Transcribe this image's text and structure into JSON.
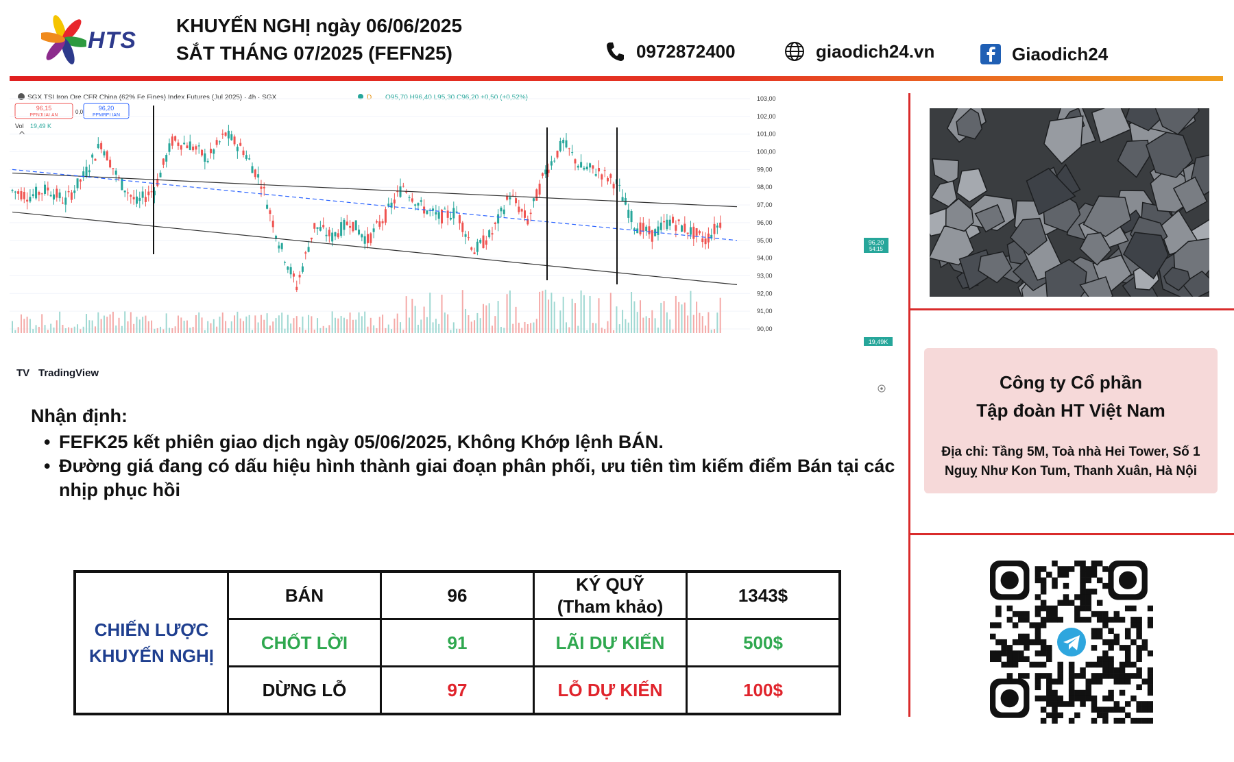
{
  "header": {
    "logo_text": "HTS",
    "title_line1": "KHUYẾN NGHỊ ngày 06/06/2025",
    "title_line2": "SẮT THÁNG 07/2025 (FEFN25)",
    "phone": "0972872400",
    "website": "giaodich24.vn",
    "facebook": "Giaodich24"
  },
  "icons": {
    "phone": "phone-icon",
    "website": "globe-icon",
    "facebook": "facebook-icon",
    "telegram": "telegram-icon"
  },
  "colors": {
    "accent_red": "#d92b2b",
    "brand_blue": "#1f3f8f",
    "profit_green": "#2fa84f",
    "loss_red": "#e0242c",
    "candle_up": "#26a69a",
    "candle_down": "#ef5350"
  },
  "chart": {
    "symbol_title": "SGX TSI Iron Ore CFR China (62% Fe Fines) Index Futures (Jul 2025) · 4h · SGX",
    "ohlc_text": "O95,70 H96,40 L95,30 C96,20 +0,50 (+0,52%)",
    "interval_badge": "D",
    "sell_price": "96,15",
    "sell_label": "PENJUALAN",
    "spread": "0,05",
    "buy_price": "96,20",
    "buy_label": "PEMBELIAN",
    "vol_label": "Vol",
    "vol_value": "19,49 K",
    "price_tag": "96,20",
    "price_tag_time": "54:15",
    "volume_tag": "19,49K",
    "watermark": "TradingView"
  },
  "chart_data": {
    "type": "line",
    "title": "SGX TSI Iron Ore CFR China (62% Fe Fines) Index Futures (Jul 2025) · 4h · SGX",
    "ylim": [
      89.5,
      103.2
    ],
    "y_ticks": [
      "103,00",
      "102,00",
      "101,00",
      "100,00",
      "99,00",
      "98,00",
      "97,00",
      "96,00",
      "95,00",
      "94,00",
      "93,00",
      "92,00",
      "91,00",
      "90,00"
    ],
    "series": [
      {
        "name": "",
        "values": [
          97.8,
          97.5,
          97.9,
          97.2,
          98.6,
          100.5,
          98.4,
          97.1,
          97.9,
          100.6,
          100.4,
          99.6,
          101.0,
          100.1,
          98.3,
          94.9,
          92.4,
          95.8,
          95.2,
          96.1,
          95.0,
          96.4,
          98.1,
          96.9,
          96.3,
          96.6,
          94.4,
          95.4,
          97.6,
          96.1,
          98.9,
          100.5,
          99.1,
          98.9,
          98.2,
          95.9,
          95.3,
          96.1,
          95.6,
          95.0,
          96.2
        ]
      }
    ],
    "channel_upper": [
      [
        0,
        98.8
      ],
      [
        41,
        96.9
      ]
    ],
    "channel_lower": [
      [
        0,
        96.6
      ],
      [
        41,
        92.5
      ]
    ],
    "channel_mid": [
      [
        0,
        99.0
      ],
      [
        41,
        95.0
      ]
    ]
  },
  "company": {
    "name_line1": "Công ty Cổ phần",
    "name_line2": "Tập đoàn HT Việt Nam",
    "address_line1": "Địa chỉ: Tầng 5M, Toà nhà Hei Tower, Số 1",
    "address_line2": "Nguỵ Như Kon Tum, Thanh Xuân, Hà Nội"
  },
  "analysis": {
    "heading": "Nhận định:",
    "bullets": [
      "FEFK25 kết phiên giao dịch ngày 05/06/2025, Không Khớp lệnh BÁN.",
      "Đường giá đang có dấu hiệu hình thành giai đoạn phân phối, ưu tiên tìm kiếm điểm Bán tại các nhịp phục hồi"
    ]
  },
  "strategy": {
    "label_line1": "CHIẾN LƯỢC",
    "label_line2": "KHUYẾN NGHỊ",
    "rows": [
      {
        "action": "BÁN",
        "price": "96",
        "metric": "KÝ QUỸ",
        "metric_sub": "(Tham khảo)",
        "amount": "1343$"
      },
      {
        "action": "CHỐT LỜI",
        "price": "91",
        "metric": "LÃI DỰ KIẾN",
        "metric_sub": "",
        "amount": "500$"
      },
      {
        "action": "DỪNG LỖ",
        "price": "97",
        "metric": "LỖ DỰ KIẾN",
        "metric_sub": "",
        "amount": "100$"
      }
    ]
  }
}
